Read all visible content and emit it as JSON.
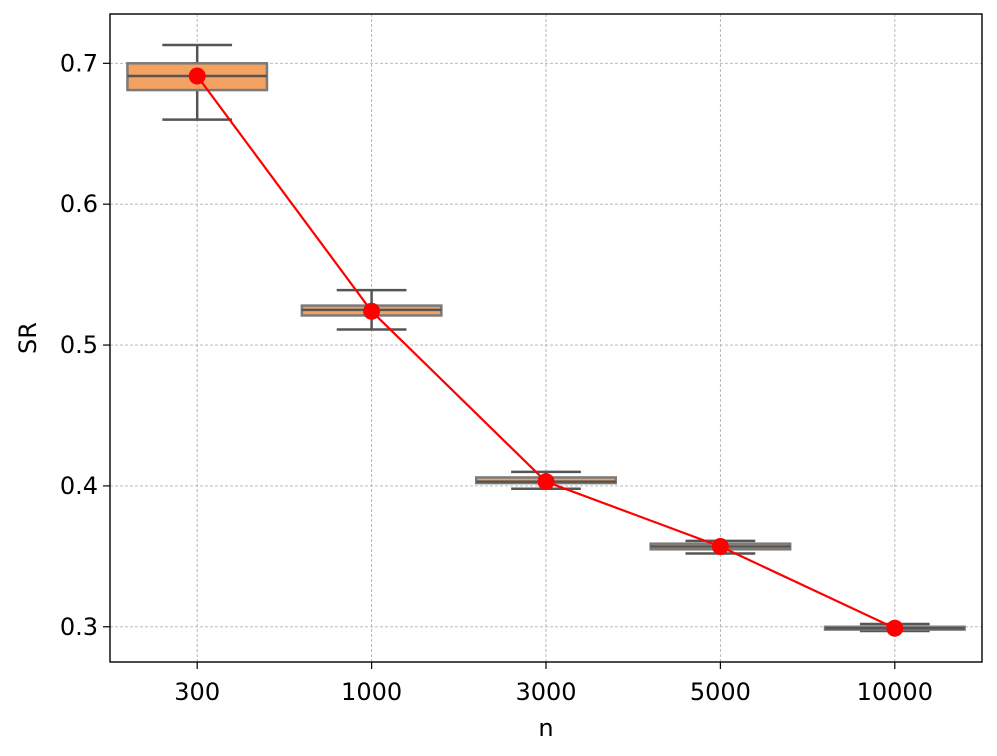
{
  "chart_data": {
    "type": "box",
    "categories": [
      "300",
      "1000",
      "3000",
      "5000",
      "10000"
    ],
    "xlabel": "n",
    "ylabel": "SR",
    "ylim": [
      0.275,
      0.735
    ],
    "yticks": [
      0.3,
      0.4,
      0.5,
      0.6,
      0.7
    ],
    "ytick_labels": [
      "0.3",
      "0.4",
      "0.5",
      "0.6",
      "0.7"
    ],
    "grid": true,
    "boxes": [
      {
        "category": "300",
        "whisker_low": 0.66,
        "q1": 0.681,
        "median": 0.691,
        "q3": 0.7,
        "whisker_high": 0.713
      },
      {
        "category": "1000",
        "whisker_low": 0.511,
        "q1": 0.521,
        "median": 0.525,
        "q3": 0.528,
        "whisker_high": 0.539
      },
      {
        "category": "3000",
        "whisker_low": 0.398,
        "q1": 0.402,
        "median": 0.403,
        "q3": 0.406,
        "whisker_high": 0.41
      },
      {
        "category": "5000",
        "whisker_low": 0.352,
        "q1": 0.355,
        "median": 0.357,
        "q3": 0.359,
        "whisker_high": 0.361
      },
      {
        "category": "10000",
        "whisker_low": 0.297,
        "q1": 0.298,
        "median": 0.299,
        "q3": 0.3,
        "whisker_high": 0.302
      }
    ],
    "series": [
      {
        "type": "line",
        "values": [
          0.691,
          0.524,
          0.403,
          0.357,
          0.299
        ]
      }
    ],
    "colors": {
      "box_fill": "#f4a261",
      "box_edge": "#555555",
      "line": "#ff0000",
      "marker": "#ff0000",
      "grid": "#b0b0b0"
    }
  }
}
